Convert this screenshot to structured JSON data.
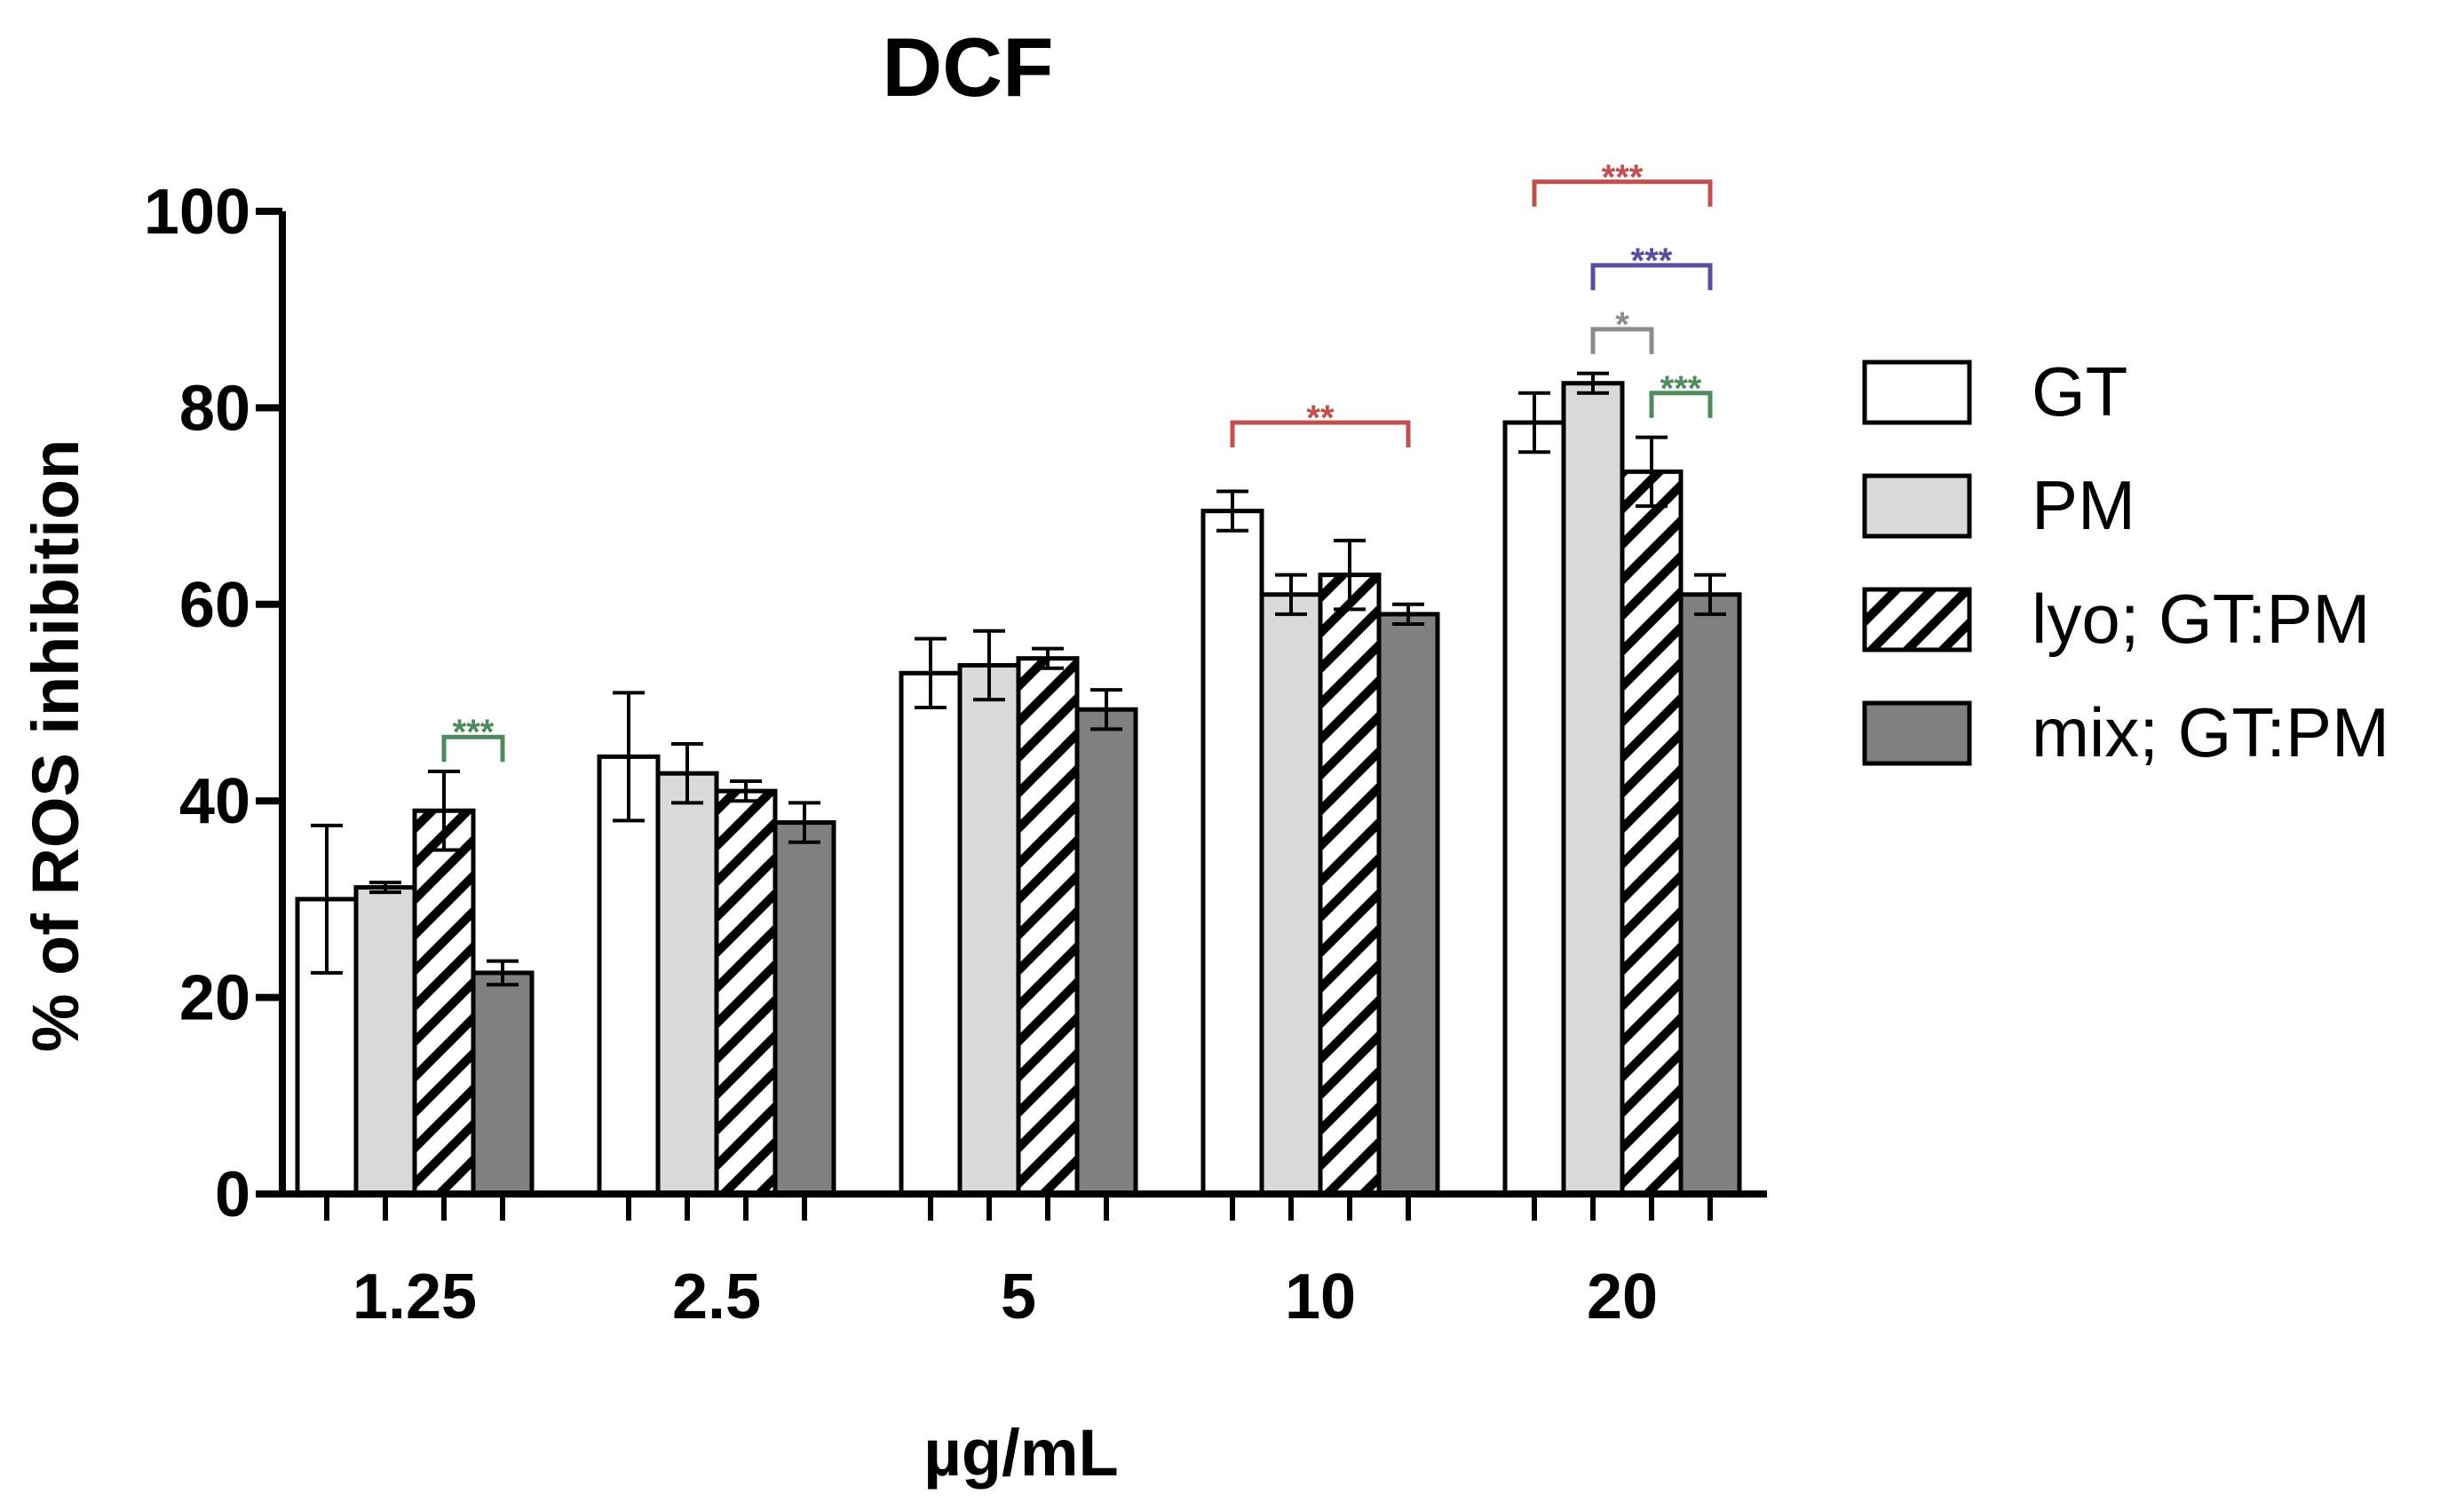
{
  "chart_data": {
    "type": "bar",
    "title": "DCF",
    "xlabel": "µg/mL",
    "ylabel": "% of ROS inhibition",
    "ylim": [
      0,
      100
    ],
    "yticks": [
      0,
      20,
      40,
      60,
      80,
      100
    ],
    "categories": [
      "1.25",
      "2.5",
      "5",
      "10",
      "20"
    ],
    "grid": false,
    "legend_position": "right",
    "series": [
      {
        "name": "GT",
        "style": "white",
        "color": "#ffffff",
        "values": [
          30,
          44.5,
          53,
          69.5,
          78.5
        ],
        "errors": [
          7.5,
          6.5,
          3.5,
          2,
          3
        ]
      },
      {
        "name": "PM",
        "style": "lightgray",
        "color": "#d9d9d9",
        "values": [
          31.2,
          42.8,
          53.8,
          61,
          82.5
        ],
        "errors": [
          0.5,
          3,
          3.5,
          2,
          1
        ]
      },
      {
        "name": "lyo; GT:PM",
        "style": "hatched",
        "color": "#ffffff",
        "values": [
          39,
          41,
          54.5,
          63,
          73.5
        ],
        "errors": [
          4,
          1,
          1,
          3.5,
          3.5
        ]
      },
      {
        "name": "mix; GT:PM",
        "style": "darkgray",
        "color": "#808080",
        "values": [
          22.5,
          37.8,
          49.3,
          59,
          61
        ],
        "errors": [
          1.2,
          2,
          2,
          1,
          2
        ]
      }
    ],
    "annotations": [
      {
        "category": "1.25",
        "from_series": 2,
        "to_series": 3,
        "label": "***",
        "color": "#4f8a5c",
        "level": 46.5
      },
      {
        "category": "10",
        "from_series": 0,
        "to_series": 3,
        "label": "**",
        "color": "#c0504d",
        "level": 78.5
      },
      {
        "category": "20",
        "from_series": 0,
        "to_series": 3,
        "label": "***",
        "color": "#c0504d",
        "level": 103
      },
      {
        "category": "20",
        "from_series": 1,
        "to_series": 3,
        "label": "***",
        "color": "#5b4e9e",
        "level": 94.5
      },
      {
        "category": "20",
        "from_series": 1,
        "to_series": 2,
        "label": "*",
        "color": "#8c8c8c",
        "level": 88
      },
      {
        "category": "20",
        "from_series": 2,
        "to_series": 3,
        "label": "***",
        "color": "#4f8a5c",
        "level": 81.5
      }
    ]
  }
}
